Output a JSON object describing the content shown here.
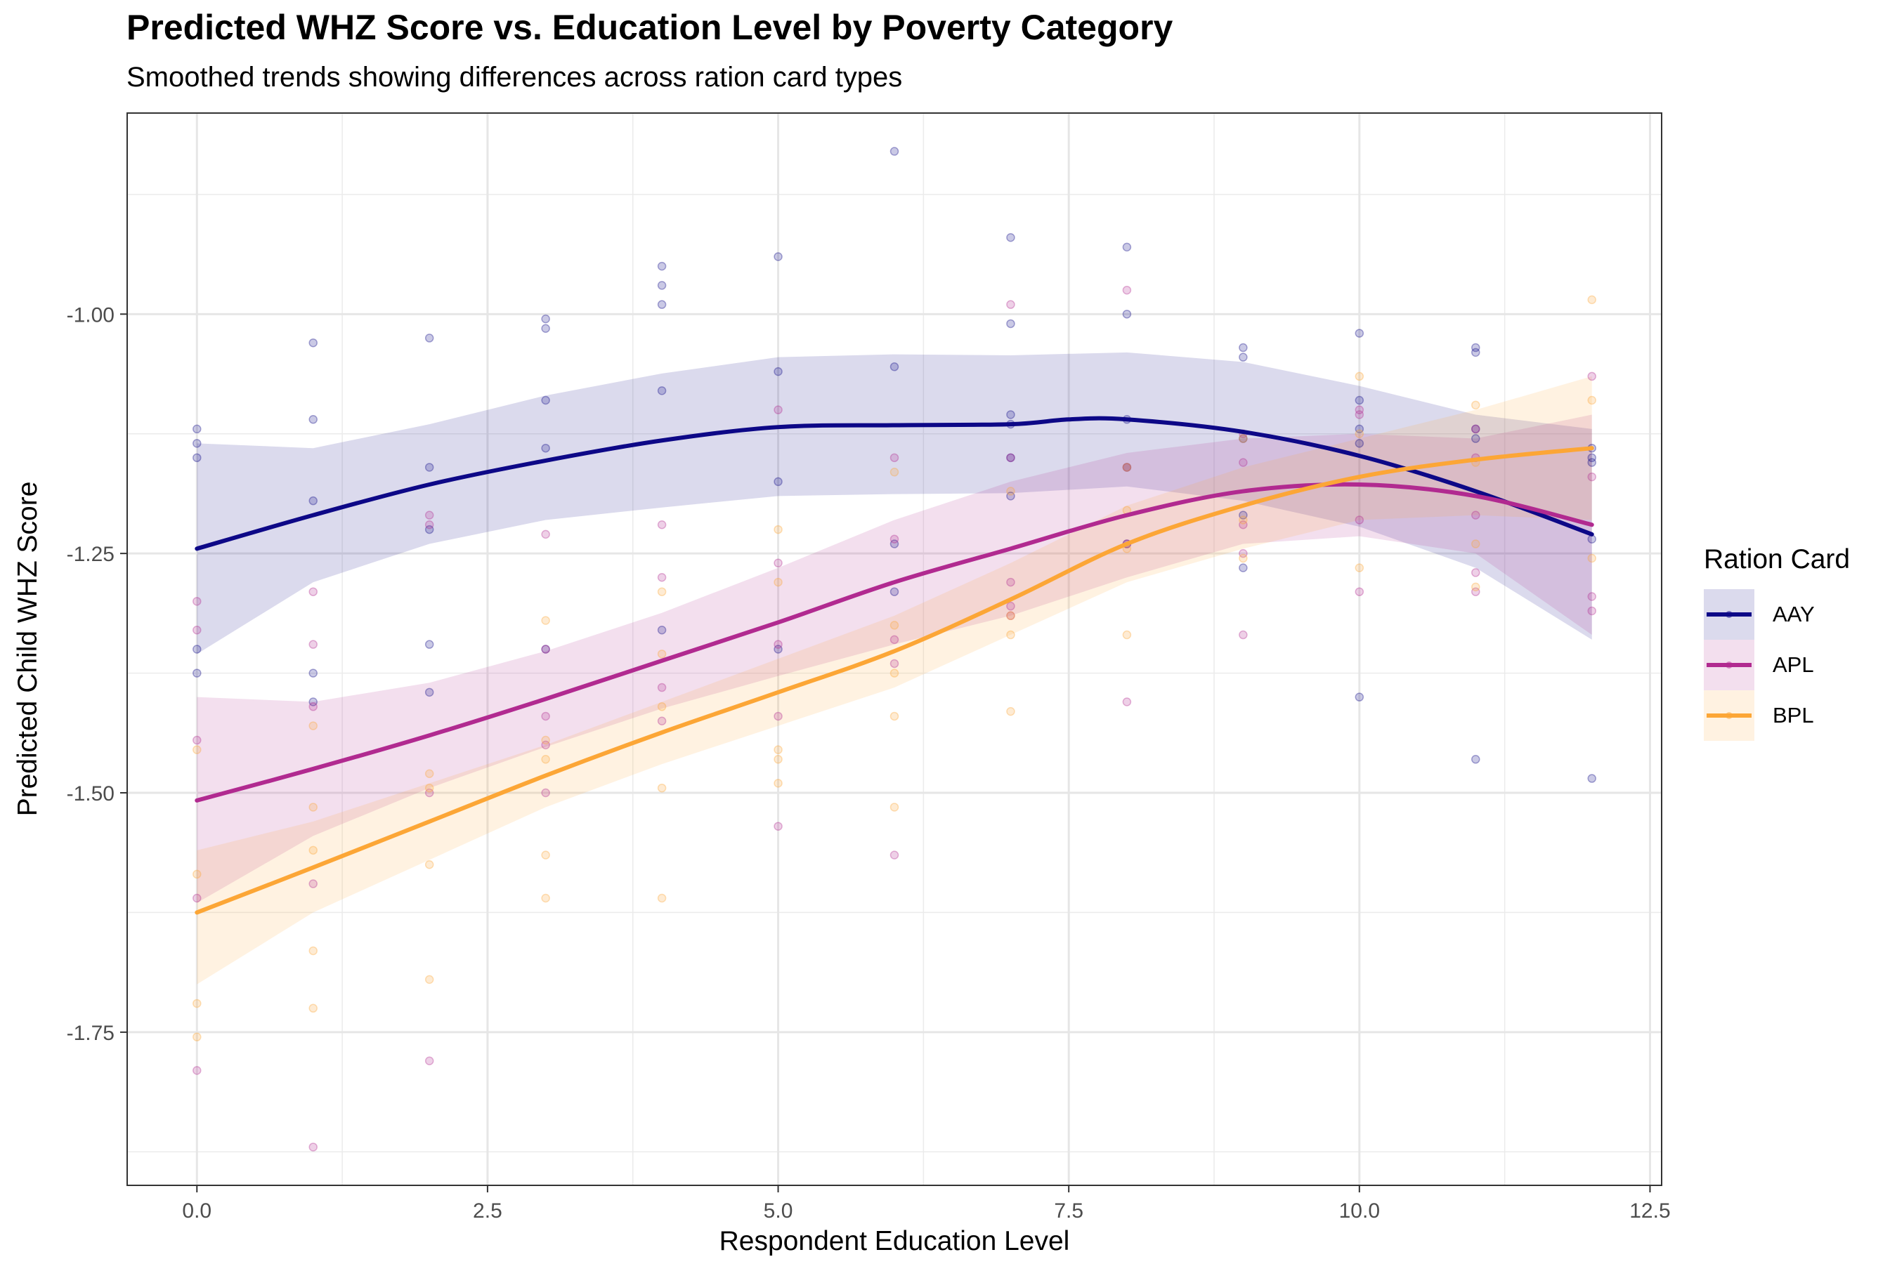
{
  "chart_data": {
    "type": "scatter",
    "title": "Predicted WHZ Score vs. Education Level by Poverty Category",
    "subtitle": "Smoothed trends showing differences across ration card types",
    "xlabel": "Respondent Education Level",
    "ylabel": "Predicted Child WHZ Score",
    "xlim": [
      -0.6,
      12.6
    ],
    "ylim": [
      -1.91,
      -0.79
    ],
    "x_ticks": [
      "0.0",
      "2.5",
      "5.0",
      "7.5",
      "10.0",
      "12.5"
    ],
    "x_tick_values": [
      0,
      2.5,
      5,
      7.5,
      10,
      12.5
    ],
    "y_ticks": [
      "-1.00",
      "-1.25",
      "-1.50",
      "-1.75"
    ],
    "y_tick_values": [
      -1.0,
      -1.25,
      -1.5,
      -1.75
    ],
    "grid": true,
    "legend_title": "Ration Card",
    "legend_position": "right",
    "series": [
      {
        "name": "AAY",
        "color": "#0d0887",
        "points": [
          [
            0,
            -1.12
          ],
          [
            0,
            -1.135
          ],
          [
            0,
            -1.15
          ],
          [
            0,
            -1.35
          ],
          [
            0,
            -1.375
          ],
          [
            1,
            -1.03
          ],
          [
            1,
            -1.11
          ],
          [
            1,
            -1.195
          ],
          [
            1,
            -1.375
          ],
          [
            1,
            -1.405
          ],
          [
            2,
            -1.025
          ],
          [
            2,
            -1.16
          ],
          [
            2,
            -1.225
          ],
          [
            2,
            -1.345
          ],
          [
            2,
            -1.395
          ],
          [
            3,
            -1.005
          ],
          [
            3,
            -1.015
          ],
          [
            3,
            -1.09
          ],
          [
            3,
            -1.14
          ],
          [
            3,
            -1.35
          ],
          [
            4,
            -0.95
          ],
          [
            4,
            -0.97
          ],
          [
            4,
            -0.99
          ],
          [
            4,
            -1.08
          ],
          [
            4,
            -1.33
          ],
          [
            5,
            -0.94
          ],
          [
            5,
            -1.06
          ],
          [
            5,
            -1.175
          ],
          [
            5,
            -1.35
          ],
          [
            6,
            -0.83
          ],
          [
            6,
            -1.055
          ],
          [
            6,
            -1.24
          ],
          [
            6,
            -1.29
          ],
          [
            7,
            -0.92
          ],
          [
            7,
            -1.01
          ],
          [
            7,
            -1.105
          ],
          [
            7,
            -1.115
          ],
          [
            7,
            -1.15
          ],
          [
            7,
            -1.19
          ],
          [
            8,
            -0.93
          ],
          [
            8,
            -1.0
          ],
          [
            8,
            -1.11
          ],
          [
            8,
            -1.16
          ],
          [
            8,
            -1.24
          ],
          [
            9,
            -1.035
          ],
          [
            9,
            -1.045
          ],
          [
            9,
            -1.13
          ],
          [
            9,
            -1.21
          ],
          [
            9,
            -1.265
          ],
          [
            10,
            -1.02
          ],
          [
            10,
            -1.09
          ],
          [
            10,
            -1.12
          ],
          [
            10,
            -1.135
          ],
          [
            10,
            -1.4
          ],
          [
            11,
            -1.035
          ],
          [
            11,
            -1.04
          ],
          [
            11,
            -1.12
          ],
          [
            11,
            -1.13
          ],
          [
            11,
            -1.465
          ],
          [
            12,
            -1.14
          ],
          [
            12,
            -1.15
          ],
          [
            12,
            -1.155
          ],
          [
            12,
            -1.235
          ],
          [
            12,
            -1.485
          ]
        ],
        "smooth": [
          [
            0,
            -1.245
          ],
          [
            1,
            -1.21
          ],
          [
            2,
            -1.178
          ],
          [
            3,
            -1.153
          ],
          [
            4,
            -1.132
          ],
          [
            5,
            -1.118
          ],
          [
            6,
            -1.116
          ],
          [
            7,
            -1.115
          ],
          [
            7.5,
            -1.11
          ],
          [
            8,
            -1.11
          ],
          [
            9,
            -1.123
          ],
          [
            10,
            -1.148
          ],
          [
            11,
            -1.185
          ],
          [
            12,
            -1.23
          ]
        ],
        "band_upper": [
          [
            0,
            -1.135
          ],
          [
            1,
            -1.14
          ],
          [
            2,
            -1.115
          ],
          [
            3,
            -1.085
          ],
          [
            4,
            -1.062
          ],
          [
            5,
            -1.045
          ],
          [
            6,
            -1.042
          ],
          [
            7,
            -1.043
          ],
          [
            8,
            -1.04
          ],
          [
            9,
            -1.05
          ],
          [
            10,
            -1.075
          ],
          [
            11,
            -1.105
          ],
          [
            12,
            -1.12
          ]
        ],
        "band_lower": [
          [
            0,
            -1.355
          ],
          [
            1,
            -1.28
          ],
          [
            2,
            -1.24
          ],
          [
            3,
            -1.215
          ],
          [
            4,
            -1.202
          ],
          [
            5,
            -1.19
          ],
          [
            6,
            -1.188
          ],
          [
            7,
            -1.187
          ],
          [
            8,
            -1.18
          ],
          [
            9,
            -1.195
          ],
          [
            10,
            -1.222
          ],
          [
            11,
            -1.265
          ],
          [
            12,
            -1.34
          ]
        ]
      },
      {
        "name": "APL",
        "color": "#b12a90",
        "points": [
          [
            0,
            -1.3
          ],
          [
            0,
            -1.33
          ],
          [
            0,
            -1.445
          ],
          [
            0,
            -1.61
          ],
          [
            0,
            -1.79
          ],
          [
            1,
            -1.29
          ],
          [
            1,
            -1.345
          ],
          [
            1,
            -1.41
          ],
          [
            1,
            -1.595
          ],
          [
            1,
            -1.87
          ],
          [
            2,
            -1.21
          ],
          [
            2,
            -1.22
          ],
          [
            2,
            -1.5
          ],
          [
            2,
            -1.78
          ],
          [
            3,
            -1.23
          ],
          [
            3,
            -1.35
          ],
          [
            3,
            -1.42
          ],
          [
            3,
            -1.45
          ],
          [
            3,
            -1.5
          ],
          [
            4,
            -1.22
          ],
          [
            4,
            -1.275
          ],
          [
            4,
            -1.39
          ],
          [
            4,
            -1.425
          ],
          [
            5,
            -1.1
          ],
          [
            5,
            -1.26
          ],
          [
            5,
            -1.345
          ],
          [
            5,
            -1.42
          ],
          [
            5,
            -1.535
          ],
          [
            6,
            -1.15
          ],
          [
            6,
            -1.235
          ],
          [
            6,
            -1.34
          ],
          [
            6,
            -1.365
          ],
          [
            6,
            -1.565
          ],
          [
            7,
            -0.99
          ],
          [
            7,
            -1.15
          ],
          [
            7,
            -1.28
          ],
          [
            7,
            -1.305
          ],
          [
            7,
            -1.315
          ],
          [
            8,
            -0.975
          ],
          [
            8,
            -1.16
          ],
          [
            8,
            -1.24
          ],
          [
            8,
            -1.405
          ],
          [
            9,
            -1.125
          ],
          [
            9,
            -1.155
          ],
          [
            9,
            -1.22
          ],
          [
            9,
            -1.25
          ],
          [
            9,
            -1.335
          ],
          [
            10,
            -1.1
          ],
          [
            10,
            -1.105
          ],
          [
            10,
            -1.215
          ],
          [
            10,
            -1.29
          ],
          [
            11,
            -1.12
          ],
          [
            11,
            -1.15
          ],
          [
            11,
            -1.21
          ],
          [
            11,
            -1.27
          ],
          [
            11,
            -1.29
          ],
          [
            12,
            -1.065
          ],
          [
            12,
            -1.17
          ],
          [
            12,
            -1.295
          ],
          [
            12,
            -1.31
          ]
        ],
        "smooth": [
          [
            0,
            -1.508
          ],
          [
            1,
            -1.475
          ],
          [
            2,
            -1.44
          ],
          [
            3,
            -1.402
          ],
          [
            4,
            -1.362
          ],
          [
            5,
            -1.322
          ],
          [
            6,
            -1.28
          ],
          [
            7,
            -1.245
          ],
          [
            8,
            -1.21
          ],
          [
            9,
            -1.185
          ],
          [
            10,
            -1.178
          ],
          [
            11,
            -1.19
          ],
          [
            12,
            -1.22
          ]
        ],
        "band_upper": [
          [
            0,
            -1.4
          ],
          [
            1,
            -1.405
          ],
          [
            2,
            -1.385
          ],
          [
            3,
            -1.352
          ],
          [
            4,
            -1.312
          ],
          [
            5,
            -1.265
          ],
          [
            6,
            -1.215
          ],
          [
            7,
            -1.175
          ],
          [
            8,
            -1.145
          ],
          [
            9,
            -1.13
          ],
          [
            10,
            -1.125
          ],
          [
            11,
            -1.13
          ],
          [
            12,
            -1.105
          ]
        ],
        "band_lower": [
          [
            0,
            -1.615
          ],
          [
            1,
            -1.545
          ],
          [
            2,
            -1.495
          ],
          [
            3,
            -1.452
          ],
          [
            4,
            -1.412
          ],
          [
            5,
            -1.378
          ],
          [
            6,
            -1.345
          ],
          [
            7,
            -1.315
          ],
          [
            8,
            -1.275
          ],
          [
            9,
            -1.24
          ],
          [
            10,
            -1.232
          ],
          [
            11,
            -1.25
          ],
          [
            12,
            -1.335
          ]
        ]
      },
      {
        "name": "BPL",
        "color": "#fca636",
        "points": [
          [
            0,
            -1.455
          ],
          [
            0,
            -1.585
          ],
          [
            0,
            -1.72
          ],
          [
            0,
            -1.755
          ],
          [
            1,
            -1.43
          ],
          [
            1,
            -1.515
          ],
          [
            1,
            -1.56
          ],
          [
            1,
            -1.665
          ],
          [
            1,
            -1.725
          ],
          [
            2,
            -1.48
          ],
          [
            2,
            -1.495
          ],
          [
            2,
            -1.575
          ],
          [
            2,
            -1.695
          ],
          [
            3,
            -1.32
          ],
          [
            3,
            -1.445
          ],
          [
            3,
            -1.465
          ],
          [
            3,
            -1.565
          ],
          [
            3,
            -1.61
          ],
          [
            4,
            -1.29
          ],
          [
            4,
            -1.355
          ],
          [
            4,
            -1.41
          ],
          [
            4,
            -1.495
          ],
          [
            4,
            -1.61
          ],
          [
            5,
            -1.225
          ],
          [
            5,
            -1.28
          ],
          [
            5,
            -1.455
          ],
          [
            5,
            -1.465
          ],
          [
            5,
            -1.49
          ],
          [
            6,
            -1.165
          ],
          [
            6,
            -1.325
          ],
          [
            6,
            -1.375
          ],
          [
            6,
            -1.42
          ],
          [
            6,
            -1.515
          ],
          [
            7,
            -1.185
          ],
          [
            7,
            -1.315
          ],
          [
            7,
            -1.335
          ],
          [
            7,
            -1.415
          ],
          [
            8,
            -1.16
          ],
          [
            8,
            -1.205
          ],
          [
            8,
            -1.245
          ],
          [
            8,
            -1.335
          ],
          [
            9,
            -1.13
          ],
          [
            9,
            -1.215
          ],
          [
            9,
            -1.255
          ],
          [
            10,
            -1.065
          ],
          [
            10,
            -1.125
          ],
          [
            10,
            -1.265
          ],
          [
            11,
            -1.095
          ],
          [
            11,
            -1.155
          ],
          [
            11,
            -1.24
          ],
          [
            11,
            -1.285
          ],
          [
            12,
            -0.985
          ],
          [
            12,
            -1.09
          ],
          [
            12,
            -1.255
          ]
        ],
        "smooth": [
          [
            0,
            -1.625
          ],
          [
            1,
            -1.578
          ],
          [
            2,
            -1.53
          ],
          [
            3,
            -1.482
          ],
          [
            4,
            -1.437
          ],
          [
            5,
            -1.395
          ],
          [
            6,
            -1.352
          ],
          [
            7,
            -1.298
          ],
          [
            8,
            -1.24
          ],
          [
            9,
            -1.2
          ],
          [
            10,
            -1.17
          ],
          [
            11,
            -1.152
          ],
          [
            12,
            -1.14
          ]
        ],
        "band_upper": [
          [
            0,
            -1.56
          ],
          [
            1,
            -1.53
          ],
          [
            2,
            -1.49
          ],
          [
            3,
            -1.45
          ],
          [
            4,
            -1.405
          ],
          [
            5,
            -1.36
          ],
          [
            6,
            -1.315
          ],
          [
            7,
            -1.26
          ],
          [
            8,
            -1.2
          ],
          [
            9,
            -1.16
          ],
          [
            10,
            -1.13
          ],
          [
            11,
            -1.1
          ],
          [
            12,
            -1.065
          ]
        ],
        "band_lower": [
          [
            0,
            -1.7
          ],
          [
            1,
            -1.625
          ],
          [
            2,
            -1.57
          ],
          [
            3,
            -1.515
          ],
          [
            4,
            -1.47
          ],
          [
            5,
            -1.43
          ],
          [
            6,
            -1.39
          ],
          [
            7,
            -1.335
          ],
          [
            8,
            -1.28
          ],
          [
            9,
            -1.245
          ],
          [
            10,
            -1.215
          ],
          [
            11,
            -1.21
          ],
          [
            12,
            -1.215
          ]
        ]
      }
    ]
  }
}
